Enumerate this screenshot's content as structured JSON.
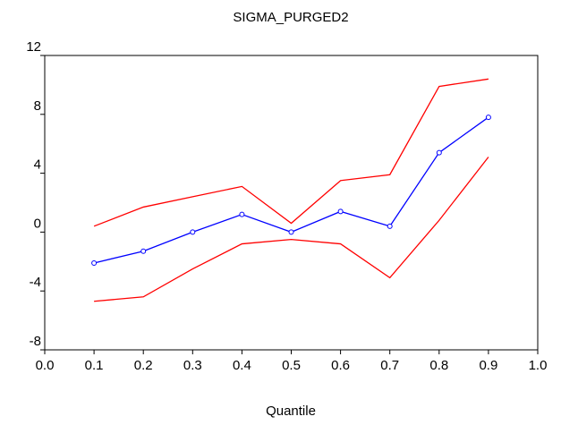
{
  "chart_data": {
    "type": "line",
    "title": "SIGMA_PURGED2",
    "x_label": "Quantile",
    "x": [
      0.1,
      0.2,
      0.3,
      0.4,
      0.5,
      0.6,
      0.7,
      0.8,
      0.9
    ],
    "series": [
      {
        "color": "#ff0000",
        "values": [
          0.4,
          1.7,
          2.4,
          3.1,
          0.6,
          3.5,
          3.9,
          9.9,
          10.4
        ],
        "markers": false
      },
      {
        "color": "#0000ff",
        "values": [
          -2.1,
          -1.3,
          0.0,
          1.2,
          0.0,
          1.4,
          0.4,
          5.4,
          7.8
        ],
        "markers": true
      },
      {
        "color": "#ff0000",
        "values": [
          -4.7,
          -4.4,
          -2.5,
          -0.8,
          -0.5,
          -0.8,
          -3.1,
          0.8,
          5.1
        ],
        "markers": false
      }
    ],
    "xlim": [
      0,
      1
    ],
    "xticks": [
      {
        "value": 0,
        "label": "0.0"
      },
      0.1,
      0.2,
      0.3,
      0.4,
      0.5,
      0.6,
      0.7,
      0.8,
      0.9,
      {
        "value": 1,
        "label": "1.0"
      }
    ],
    "ylim": [
      -8,
      12
    ],
    "yticks": [
      -8,
      -4,
      0,
      4,
      8,
      12
    ],
    "grid": false
  }
}
